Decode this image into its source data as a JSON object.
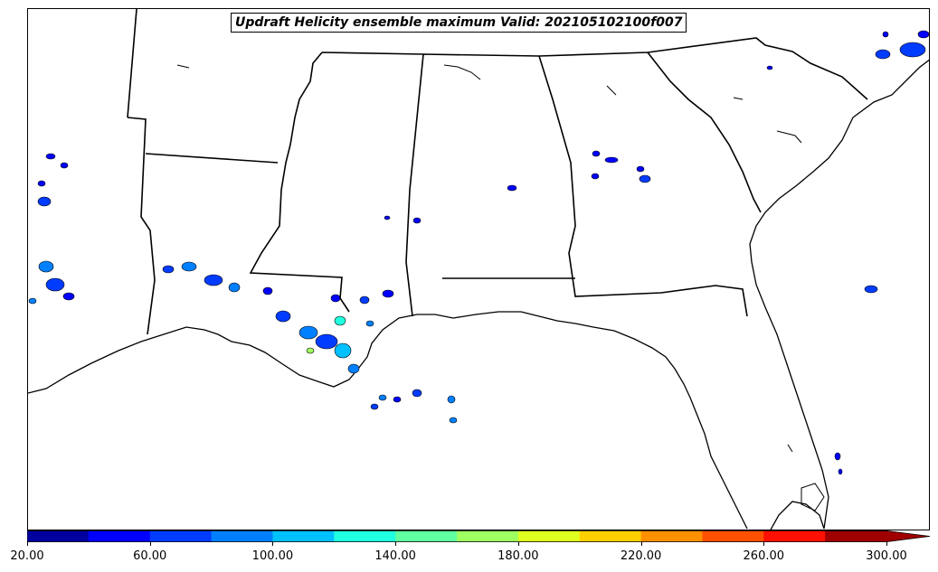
{
  "title": "Updraft Helicity ensemble maximum Valid: 202105102100f007",
  "colorbar": {
    "colors": [
      "#00009f",
      "#0000ff",
      "#003cff",
      "#0080ff",
      "#00c0ff",
      "#20ffdf",
      "#60ff9f",
      "#9fff60",
      "#dfff20",
      "#ffd000",
      "#ff9000",
      "#ff5000",
      "#ff1000",
      "#a00000"
    ],
    "extend_color": "#a00000",
    "tick_labels": [
      "20.00",
      "60.00",
      "100.00",
      "140.00",
      "180.00",
      "220.00",
      "260.00",
      "300.00"
    ]
  },
  "map": {
    "background": "#ffffff",
    "line_color": "#000000",
    "region": "Southeastern United States / Gulf of Mexico coast"
  }
}
